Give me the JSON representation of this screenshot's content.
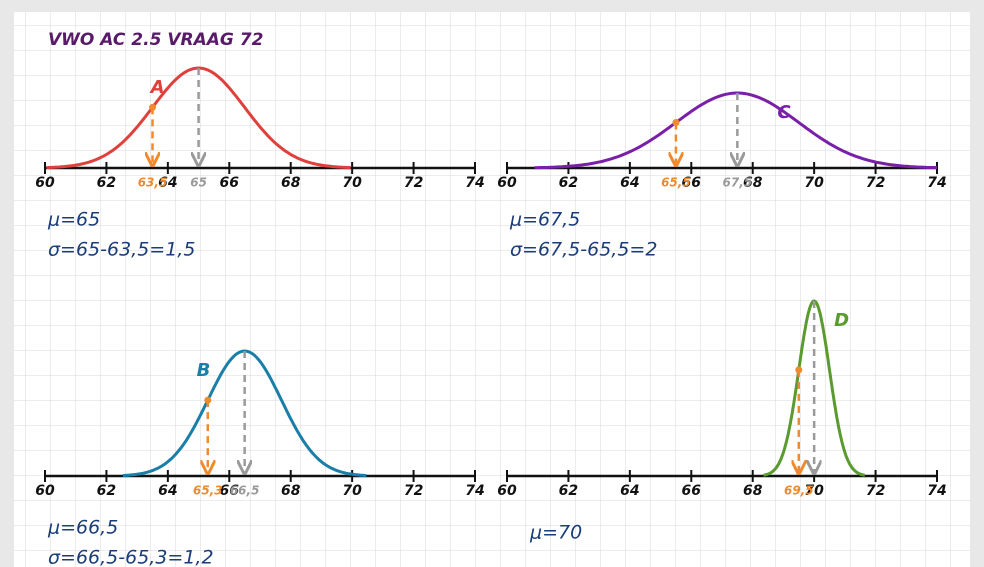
{
  "title": "VWO AC 2.5 VRAAG 72",
  "xlim": [
    60,
    74
  ],
  "xticks": [
    60,
    62,
    64,
    66,
    68,
    70,
    72,
    74
  ],
  "panels": [
    {
      "label": "A",
      "color": "#e0403c",
      "mean": 65,
      "sd": 1.5,
      "markers": [
        {
          "value": 63.5,
          "label": "63,5",
          "color": "#f08a2c"
        },
        {
          "value": 65,
          "label": "65",
          "color": "#9a9a9a"
        }
      ],
      "notes": [
        "μ=65",
        "σ=65-63,5=1,5"
      ]
    },
    {
      "label": "C",
      "color": "#7a1fa8",
      "mean": 67.5,
      "sd": 2,
      "markers": [
        {
          "value": 65.5,
          "label": "65,5",
          "color": "#f08a2c"
        },
        {
          "value": 67.5,
          "label": "67,5",
          "color": "#9a9a9a"
        }
      ],
      "notes": [
        "μ=67,5",
        "σ=67,5-65,5=2"
      ]
    },
    {
      "label": "B",
      "color": "#1a7fa8",
      "mean": 66.5,
      "sd": 1.2,
      "markers": [
        {
          "value": 65.3,
          "label": "65,3",
          "color": "#f08a2c"
        },
        {
          "value": 66.5,
          "label": "66,5",
          "color": "#9a9a9a"
        }
      ],
      "notes": [
        "μ=66,5",
        "σ=66,5-65,3=1,2"
      ]
    },
    {
      "label": "D",
      "color": "#5a9a2e",
      "mean": 70,
      "sd": 0.5,
      "markers": [
        {
          "value": 69.5,
          "label": "69,5",
          "color": "#f08a2c"
        },
        {
          "value": 70,
          "color": "#9a9a9a"
        }
      ],
      "notes": [
        "μ=70"
      ]
    }
  ]
}
